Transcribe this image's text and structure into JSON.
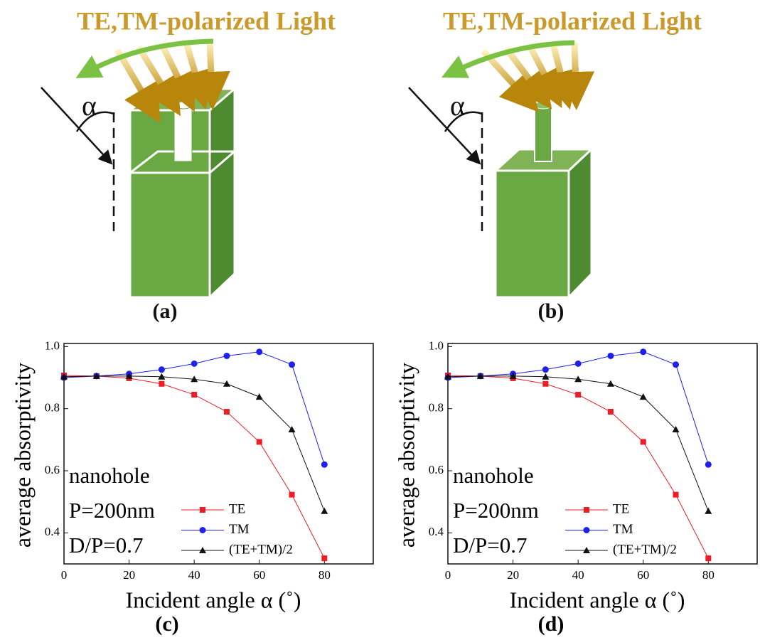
{
  "panels": {
    "a": {
      "title": "TE,TM-polarized Light",
      "angle": "α",
      "label": "(a)"
    },
    "b": {
      "title": "TE,TM-polarized Light",
      "angle": "α",
      "label": "(b)"
    }
  },
  "chart_data": [
    {
      "type": "line",
      "label": "(c)",
      "xlabel": "Incident angle α (˚)",
      "ylabel": "average absorptivity",
      "annotations": [
        "nanohole",
        "P=200nm",
        "D/P=0.7"
      ],
      "x": [
        0,
        10,
        20,
        30,
        40,
        50,
        60,
        70,
        80
      ],
      "series": [
        {
          "name": "TE",
          "color": "#ee1c24",
          "marker": "square",
          "values": [
            0.907,
            0.905,
            0.898,
            0.88,
            0.845,
            0.79,
            0.693,
            0.523,
            0.318
          ]
        },
        {
          "name": "TM",
          "color": "#1f1fee",
          "marker": "circle",
          "values": [
            0.9,
            0.905,
            0.912,
            0.926,
            0.945,
            0.97,
            0.983,
            0.942,
            0.62
          ]
        },
        {
          "name": "(TE+TM)/2",
          "color": "#111111",
          "marker": "triangle",
          "values": [
            0.903,
            0.905,
            0.905,
            0.903,
            0.895,
            0.88,
            0.838,
            0.733,
            0.47
          ]
        }
      ],
      "xlim": [
        0,
        95
      ],
      "ylim": [
        0.3,
        1.01
      ],
      "xticks": [
        0,
        20,
        40,
        60,
        80
      ],
      "yticks": [
        0.4,
        0.6,
        0.8,
        {
          "value": 1,
          "label": "1.0"
        }
      ]
    },
    {
      "type": "line",
      "label": "(d)",
      "xlabel": "Incident angle α (˚)",
      "ylabel": "average absorptivity",
      "annotations": [
        "nanohole",
        "P=200nm",
        "D/P=0.7"
      ],
      "x": [
        0,
        10,
        20,
        30,
        40,
        50,
        60,
        70,
        80
      ],
      "series": [
        {
          "name": "TE",
          "color": "#ee1c24",
          "marker": "square",
          "values": [
            0.907,
            0.905,
            0.898,
            0.88,
            0.845,
            0.79,
            0.693,
            0.523,
            0.318
          ]
        },
        {
          "name": "TM",
          "color": "#1f1fee",
          "marker": "circle",
          "values": [
            0.9,
            0.905,
            0.912,
            0.926,
            0.945,
            0.97,
            0.983,
            0.942,
            0.62
          ]
        },
        {
          "name": "(TE+TM)/2",
          "color": "#111111",
          "marker": "triangle",
          "values": [
            0.903,
            0.905,
            0.905,
            0.903,
            0.895,
            0.88,
            0.838,
            0.733,
            0.47
          ]
        }
      ],
      "xlim": [
        0,
        95
      ],
      "ylim": [
        0.3,
        1.01
      ],
      "xticks": [
        0,
        20,
        40,
        60,
        80
      ],
      "yticks": [
        0.4,
        0.6,
        0.8,
        {
          "value": 1,
          "label": "1.0"
        }
      ]
    }
  ]
}
